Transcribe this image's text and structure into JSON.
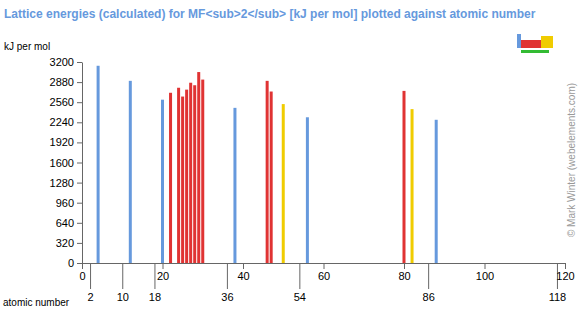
{
  "chart_data": {
    "type": "bar",
    "title": "Lattice energies (calculated) for MF<sub>2</sub> [kJ per mol] plotted against atomic number",
    "y_label": "kJ per mol",
    "x_label": "atomic number",
    "annotations": [
      "© Mark Winter (webelements.com)"
    ],
    "x": [
      4,
      12,
      20,
      22,
      24,
      25,
      26,
      27,
      28,
      29,
      30,
      38,
      46,
      47,
      50,
      56,
      80,
      82,
      88
    ],
    "values": [
      3140,
      2900,
      2600,
      2710,
      2790,
      2650,
      2760,
      2870,
      2830,
      3040,
      2920,
      2470,
      2900,
      2730,
      2530,
      2320,
      2740,
      2450,
      2280
    ],
    "colors": [
      "#6699dd",
      "#6699dd",
      "#6699dd",
      "#e03333",
      "#e03333",
      "#e03333",
      "#e03333",
      "#e03333",
      "#e03333",
      "#e03333",
      "#e03333",
      "#6699dd",
      "#e03333",
      "#e03333",
      "#f0cc00",
      "#6699dd",
      "#e03333",
      "#f0cc00",
      "#6699dd"
    ],
    "xlim": [
      0,
      120
    ],
    "xticks": [
      0,
      2,
      10,
      18,
      20,
      36,
      40,
      54,
      60,
      80,
      86,
      100,
      118,
      120
    ],
    "ylim": [
      0,
      3200
    ],
    "yticks": [
      0,
      320,
      640,
      960,
      1280,
      1600,
      1920,
      2240,
      2560,
      2880,
      3200
    ],
    "grid": false
  }
}
